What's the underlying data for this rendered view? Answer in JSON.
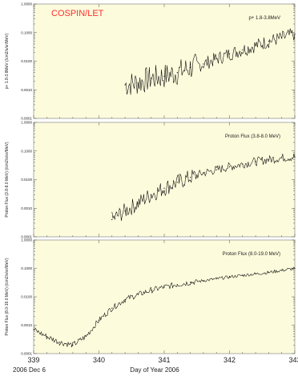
{
  "figure": {
    "brand_label": "COSPIN/LET",
    "xlabel": "Day of Year 2006",
    "date_label": "2006 Dec 6",
    "colors": {
      "plot_background": "#fcfbdc",
      "brand": "#ff2d2d",
      "series": "#000000",
      "frame": "#777777"
    }
  },
  "chart_data": [
    {
      "type": "line",
      "title": "p+ 1.8-3.8MeV",
      "ylabel": "p+ 1.8-3.8MeV (/cm2/s/sr/MeV)",
      "xlim": [
        339,
        343
      ],
      "ylim": [
        0.0001,
        1.0
      ],
      "yscale": "log",
      "yticks": [
        0.0001,
        0.001,
        0.01,
        0.1,
        1.0
      ],
      "ytick_labels": [
        "0.0001",
        "0.0010",
        "0.0100",
        "0.1000",
        "1.0000"
      ],
      "xticks": [
        339,
        340,
        341,
        342,
        343
      ],
      "xtick_labels": [
        "",
        "",
        "",
        "",
        ""
      ],
      "grid": false,
      "series": [
        {
          "x": [
            340.4,
            340.6,
            340.8,
            341.0,
            341.2,
            341.4,
            341.6,
            341.8,
            342.0,
            342.2,
            342.4,
            342.6,
            342.8,
            343.0
          ],
          "y": [
            0.0015,
            0.0018,
            0.0025,
            0.003,
            0.004,
            0.006,
            0.008,
            0.012,
            0.018,
            0.025,
            0.035,
            0.05,
            0.065,
            0.09
          ]
        }
      ]
    },
    {
      "type": "line",
      "title": "Proton Flux (3.8-8.0 MeV)",
      "ylabel": "Proton Flux (3.8-8.0 MeV) (/cm2/s/sr/MeV)",
      "xlim": [
        339,
        343
      ],
      "ylim": [
        0.0001,
        1.0
      ],
      "yscale": "log",
      "yticks": [
        0.0001,
        0.001,
        0.01,
        0.1,
        1.0
      ],
      "ytick_labels": [
        "0.0001",
        "0.0010",
        "0.0100",
        "0.1000",
        "1.0000"
      ],
      "xticks": [
        339,
        340,
        341,
        342,
        343
      ],
      "xtick_labels": [
        "",
        "",
        "",
        "",
        ""
      ],
      "grid": false,
      "series": [
        {
          "x": [
            340.2,
            340.4,
            340.6,
            340.8,
            341.0,
            341.2,
            341.4,
            341.6,
            341.8,
            342.0,
            342.2,
            342.4,
            342.6,
            342.8,
            343.0
          ],
          "y": [
            0.0004,
            0.0008,
            0.0015,
            0.003,
            0.005,
            0.008,
            0.012,
            0.017,
            0.022,
            0.028,
            0.035,
            0.043,
            0.05,
            0.058,
            0.062
          ]
        }
      ]
    },
    {
      "type": "line",
      "title": "Proton Flux (8.0-19.0 MeV)",
      "ylabel": "Proton Flux (8.0-19.0 MeV) (/cm2/s/sr/MeV)",
      "xlim": [
        339,
        343
      ],
      "ylim": [
        0.0001,
        1.0
      ],
      "yscale": "log",
      "yticks": [
        0.0001,
        0.001,
        0.01,
        0.1,
        1.0
      ],
      "ytick_labels": [
        "0.0001",
        "0.0010",
        "0.0100",
        "0.1000",
        "1.0000"
      ],
      "xticks": [
        339,
        340,
        341,
        342,
        343
      ],
      "xtick_labels": [
        "339",
        "340",
        "341",
        "342",
        "343"
      ],
      "grid": false,
      "series": [
        {
          "x": [
            339.0,
            339.2,
            339.4,
            339.6,
            339.8,
            340.0,
            340.2,
            340.4,
            340.6,
            340.8,
            341.0,
            341.2,
            341.4,
            341.6,
            341.8,
            342.0,
            342.2,
            342.4,
            342.6,
            342.8,
            343.0
          ],
          "y": [
            0.0007,
            0.0004,
            0.00025,
            0.0002,
            0.0004,
            0.0015,
            0.004,
            0.008,
            0.012,
            0.017,
            0.022,
            0.027,
            0.032,
            0.037,
            0.043,
            0.05,
            0.057,
            0.064,
            0.072,
            0.085,
            0.1
          ]
        }
      ]
    }
  ]
}
